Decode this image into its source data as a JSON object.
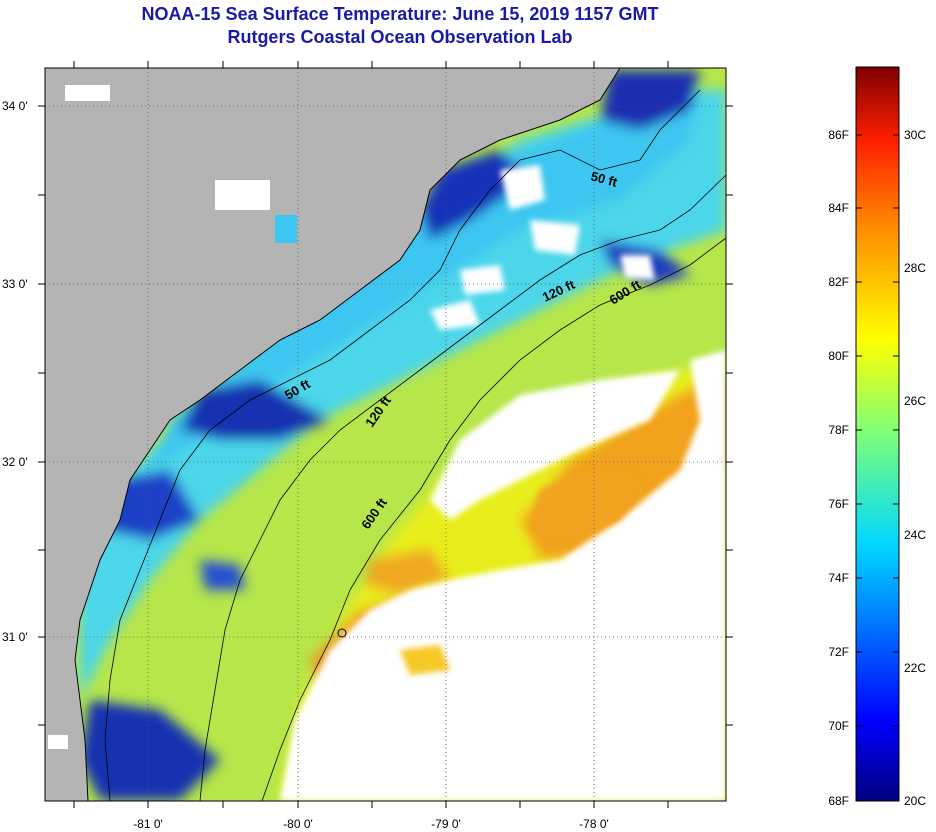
{
  "title_line1": "NOAA-15 Sea Surface Temperature:  June 15, 2019 1157 GMT",
  "title_line2": "Rutgers Coastal Ocean Observation Lab",
  "map": {
    "lon_labels": [
      "-81 0'",
      "-80 0'",
      "-79 0'",
      "-78 0'"
    ],
    "lat_labels": [
      "34 0'",
      "33 0'",
      "32 0'",
      "31 0'"
    ],
    "isobath_labels": [
      "50 ft",
      "120 ft",
      "600 ft",
      "50 ft",
      "120 ft",
      "600 ft"
    ],
    "colors": {
      "land": "#b4b4b4",
      "cloud": "#ffffff"
    }
  },
  "colorbar": {
    "fahrenheit_labels": [
      "86F",
      "84F",
      "82F",
      "80F",
      "78F",
      "76F",
      "74F",
      "72F",
      "70F",
      "68F"
    ],
    "celsius_labels": [
      "30C",
      "28C",
      "26C",
      "24C",
      "22C",
      "20C"
    ],
    "range_f": [
      68,
      88
    ]
  }
}
